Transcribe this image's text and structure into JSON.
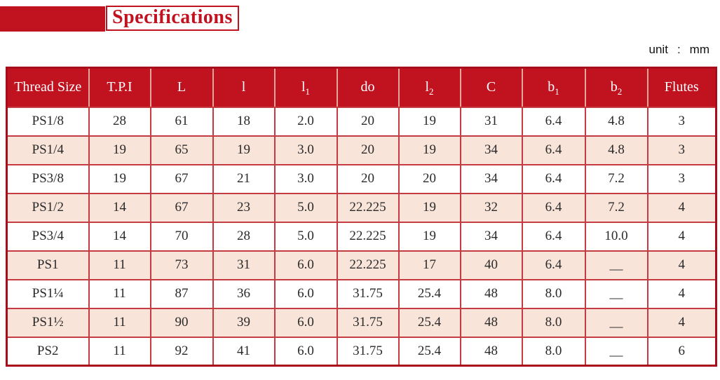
{
  "header": {
    "title": "Specifications",
    "unit_label": "unit",
    "unit_colon": ":",
    "unit_value": "mm"
  },
  "colors": {
    "accent": "#c0121f",
    "accent_dark": "#a90d1a",
    "grid_line": "#c53b42",
    "row_alt": "#f8e4d9",
    "text": "#2a2a2a"
  },
  "table": {
    "columns": [
      {
        "base": "Thread Size",
        "sub": ""
      },
      {
        "base": "T.P.I",
        "sub": ""
      },
      {
        "base": "L",
        "sub": ""
      },
      {
        "base": "l",
        "sub": ""
      },
      {
        "base": "l",
        "sub": "1"
      },
      {
        "base": "do",
        "sub": ""
      },
      {
        "base": "l",
        "sub": "2"
      },
      {
        "base": "C",
        "sub": ""
      },
      {
        "base": "b",
        "sub": "1"
      },
      {
        "base": "b",
        "sub": "2"
      },
      {
        "base": "Flutes",
        "sub": ""
      }
    ],
    "rows": [
      [
        "PS1/8",
        "28",
        "61",
        "18",
        "2.0",
        "20",
        "19",
        "31",
        "6.4",
        "4.8",
        "3"
      ],
      [
        "PS1/4",
        "19",
        "65",
        "19",
        "3.0",
        "20",
        "19",
        "34",
        "6.4",
        "4.8",
        "3"
      ],
      [
        "PS3/8",
        "19",
        "67",
        "21",
        "3.0",
        "20",
        "20",
        "34",
        "6.4",
        "7.2",
        "3"
      ],
      [
        "PS1/2",
        "14",
        "67",
        "23",
        "5.0",
        "22.225",
        "19",
        "32",
        "6.4",
        "7.2",
        "4"
      ],
      [
        "PS3/4",
        "14",
        "70",
        "28",
        "5.0",
        "22.225",
        "19",
        "34",
        "6.4",
        "10.0",
        "4"
      ],
      [
        "PS1",
        "11",
        "73",
        "31",
        "6.0",
        "22.225",
        "17",
        "40",
        "6.4",
        "__",
        "4"
      ],
      [
        "PS1¼",
        "11",
        "87",
        "36",
        "6.0",
        "31.75",
        "25.4",
        "48",
        "8.0",
        "__",
        "4"
      ],
      [
        "PS1½",
        "11",
        "90",
        "39",
        "6.0",
        "31.75",
        "25.4",
        "48",
        "8.0",
        "__",
        "4"
      ],
      [
        "PS2",
        "11",
        "92",
        "41",
        "6.0",
        "31.75",
        "25.4",
        "48",
        "8.0",
        "__",
        "6"
      ]
    ]
  }
}
